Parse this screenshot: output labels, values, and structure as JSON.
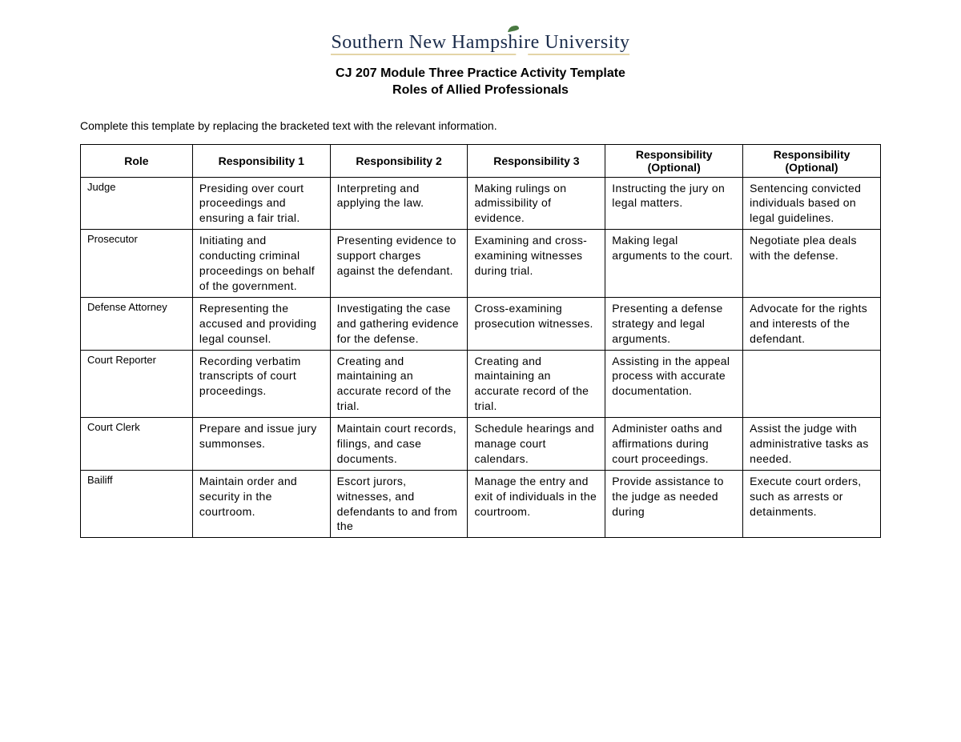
{
  "logo": {
    "text_left": "Southern New Hamps",
    "text_right": "ire University",
    "leaf_color": "#4a7a42",
    "text_color": "#1a2b4a",
    "underline_color": "#c9a94f"
  },
  "title_line1": "CJ 207 Module Three Practice Activity Template",
  "title_line2": "Roles of Allied Professionals",
  "instructions": "Complete this template by replacing the bracketed text with the relevant information.",
  "table": {
    "headers": [
      "Role",
      "Responsibility 1",
      "Responsibility 2",
      "Responsibility 3",
      "Responsibility (Optional)",
      "Responsibility (Optional)"
    ],
    "rows": [
      {
        "role": "Judge",
        "cells": [
          "Presiding over court proceedings and ensuring a fair trial.",
          "Interpreting and applying the law.",
          "Making rulings on admissibility of evidence.",
          "Instructing the jury on legal matters.",
          "Sentencing convicted individuals based on legal guidelines."
        ]
      },
      {
        "role": "Prosecutor",
        "cells": [
          "Initiating and conducting criminal proceedings on behalf of the government.",
          "Presenting evidence to support charges against the defendant.",
          "Examining and cross-examining witnesses during trial.",
          "Making legal arguments to the court.",
          "Negotiate plea deals with the defense."
        ]
      },
      {
        "role": "Defense Attorney",
        "cells": [
          "Representing the accused and providing legal counsel.",
          "Investigating the case and gathering evidence for the defense.",
          "Cross-examining prosecution witnesses.",
          "Presenting a defense strategy and legal arguments.",
          "Advocate for the rights and interests of the defendant."
        ]
      },
      {
        "role": "Court Reporter",
        "cells": [
          "Recording verbatim transcripts of court proceedings.",
          "Creating and maintaining an accurate record of the trial.",
          "Creating and maintaining an accurate record of the trial.",
          "Assisting in the appeal process with accurate documentation.",
          ""
        ]
      },
      {
        "role": "Court Clerk",
        "cells": [
          "Prepare and issue jury summonses.",
          "Maintain court records, filings, and case documents.",
          "Schedule hearings and manage court calendars.",
          "Administer oaths and affirmations during court proceedings.",
          "Assist the judge with administrative tasks as needed."
        ]
      },
      {
        "role": "Bailiff",
        "cells": [
          "Maintain order and security in the courtroom.",
          "Escort jurors, witnesses, and defendants to and from the",
          "Manage the entry and exit of individuals in the courtroom.",
          "Provide assistance to the judge as needed during",
          "Execute court orders, such as arrests or detainments."
        ]
      }
    ]
  }
}
